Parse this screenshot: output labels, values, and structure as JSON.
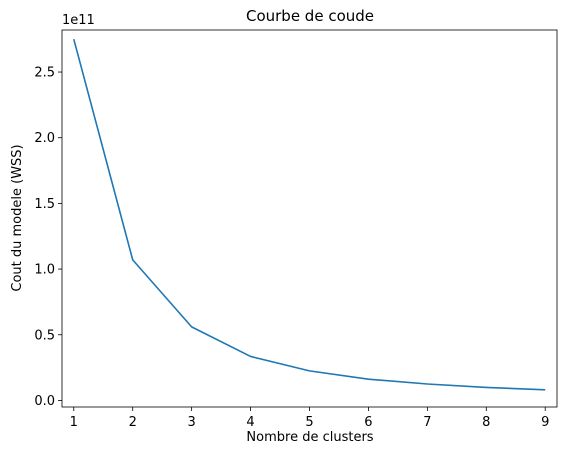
{
  "chart_data": {
    "type": "line",
    "title": "Courbe de coude",
    "xlabel": "Nombre de clusters",
    "ylabel": "Cout du modele (WSS)",
    "y_offset_label": "1e11",
    "xlim": [
      0.8,
      9.2
    ],
    "ylim": [
      -0.05,
      2.82
    ],
    "x_ticks": [
      1,
      2,
      3,
      4,
      5,
      6,
      7,
      8,
      9
    ],
    "y_ticks": [
      0.0,
      0.5,
      1.0,
      1.5,
      2.0,
      2.5
    ],
    "y_tick_labels": [
      "0.0",
      "0.5",
      "1.0",
      "1.5",
      "2.0",
      "2.5"
    ],
    "grid": false,
    "series": [
      {
        "color": "#1f77b4",
        "x": [
          1,
          2,
          3,
          4,
          5,
          6,
          7,
          8,
          9
        ],
        "y": [
          2.75,
          1.07,
          0.56,
          0.335,
          0.225,
          0.162,
          0.125,
          0.099,
          0.081
        ]
      }
    ]
  }
}
